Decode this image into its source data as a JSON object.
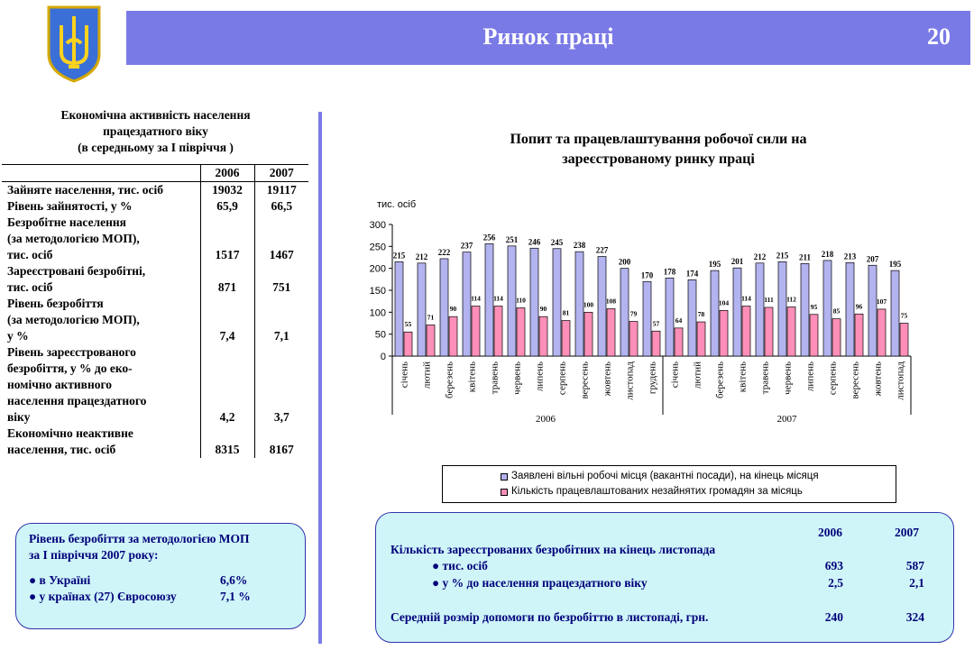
{
  "header": {
    "title": "Ринок праці",
    "page_number": "20"
  },
  "colors": {
    "title_bar": "#7a7ae6",
    "vacancy_bar": "#b3b3f0",
    "employed_bar": "#ff8fb8",
    "info_box": "#cff5f8",
    "info_text": "#00007a"
  },
  "left_table": {
    "title_lines": [
      "Економічна активність населення",
      "працездатного віку",
      "(в середньому за I  півріччя )"
    ],
    "years": [
      "2006",
      "2007"
    ],
    "rows": [
      {
        "label": [
          "Зайняте населення, тис. осіб"
        ],
        "v2006": "19032",
        "v2007": "19117"
      },
      {
        "label": [
          "Рівень зайнятості, у %"
        ],
        "v2006": "65,9",
        "v2007": "66,5"
      },
      {
        "label": [
          "Безробітне населення",
          "(за методологією МОП),",
          "тис. осіб"
        ],
        "v2006": "1517",
        "v2007": "1467"
      },
      {
        "label": [
          "Зареєстровані безробітні,",
          "тис. осіб"
        ],
        "v2006": "871",
        "v2007": "751"
      },
      {
        "label": [
          "Рівень безробіття",
          "(за методологією МОП),",
          " у %"
        ],
        "v2006": "7,4",
        "v2007": "7,1"
      },
      {
        "label": [
          "Рівень зареєстрованого",
          "безробіття, у % до еко-",
          "номічно активного",
          "населення працездатного",
          "віку"
        ],
        "v2006": "4,2",
        "v2007": "3,7"
      },
      {
        "label": [
          "Економічно неактивне",
          "населення, тис. осіб"
        ],
        "v2006": "8315",
        "v2007": "8167"
      }
    ]
  },
  "info_left": {
    "title_lines": [
      "Рівень безробіття за методологією МОП",
      "за   I півріччя 2007 року:"
    ],
    "items": [
      {
        "label": "● в Україні",
        "value": "6,6%"
      },
      {
        "label": "● у країнах (27) Євросоюзу",
        "value": "7,1 %"
      }
    ]
  },
  "chart_title": [
    "Попит та  працевлаштування робочої сили на",
    "зареєстрованому ринку праці"
  ],
  "chart_data": {
    "type": "bar",
    "title": "Попит та  працевлаштування робочої сили на зареєстрованому ринку праці",
    "ylabel": "тис. осіб",
    "ylim": [
      0,
      300
    ],
    "yticks": [
      0,
      50,
      100,
      150,
      200,
      250,
      300
    ],
    "categories": [
      "січень",
      "лютий",
      "березень",
      "квітень",
      "травень",
      "червень",
      "липень",
      "серпень",
      "вересень",
      "жовтень",
      "листопад",
      "грудень",
      "січень",
      "лютий",
      "березень",
      "квітень",
      "травень",
      "червень",
      "липень",
      "серпень",
      "вересень",
      "жовтень",
      "листопад"
    ],
    "groups": [
      {
        "label": "2006",
        "count": 12
      },
      {
        "label": "2007",
        "count": 11
      }
    ],
    "series": [
      {
        "name": "Заявлені вільні робочі місця (вакантні посади), на кінець місяця",
        "values": [
          215,
          212,
          222,
          237,
          256,
          251,
          246,
          245,
          238,
          227,
          200,
          170,
          178,
          174,
          195,
          201,
          212,
          215,
          211,
          218,
          213,
          207,
          195
        ]
      },
      {
        "name": "Кількість працевлаштованих незайнятих громадян за місяць",
        "values": [
          55,
          71,
          90,
          114,
          114,
          110,
          90,
          81,
          100,
          108,
          79,
          57,
          64,
          78,
          104,
          114,
          111,
          112,
          95,
          85,
          96,
          107,
          75
        ]
      }
    ]
  },
  "info_right": {
    "years": [
      "2006",
      "2007"
    ],
    "heading": "Кількість зареєстрованих безробітних на кінець листопада",
    "rows": [
      {
        "label": "●  тис. осіб",
        "v2006": "693",
        "v2007": "587"
      },
      {
        "label": "●  у % до населення працездатного віку",
        "v2006": "2,5",
        "v2007": "2,1"
      }
    ],
    "benefit": {
      "label": "Середній розмір допомоги по безробіттю в листопаді, грн.",
      "v2006": "240",
      "v2007": "324"
    }
  }
}
